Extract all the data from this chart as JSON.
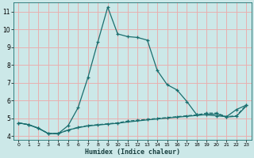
{
  "xlabel": "Humidex (Indice chaleur)",
  "bg_color": "#cce8e8",
  "grid_color": "#e8b0b0",
  "line_color": "#1a6e6e",
  "xlim": [
    -0.5,
    23.5
  ],
  "ylim": [
    3.8,
    11.5
  ],
  "xticks": [
    0,
    1,
    2,
    3,
    4,
    5,
    6,
    7,
    8,
    9,
    10,
    11,
    12,
    13,
    14,
    15,
    16,
    17,
    18,
    19,
    20,
    21,
    22,
    23
  ],
  "yticks": [
    4,
    5,
    6,
    7,
    8,
    9,
    10,
    11
  ],
  "line1_x": [
    0,
    1,
    2,
    3,
    4,
    5,
    6,
    7,
    8,
    9,
    10,
    11,
    12,
    13,
    14,
    15,
    16,
    17,
    18,
    19,
    20,
    21,
    22,
    23
  ],
  "line1_y": [
    4.75,
    4.65,
    4.45,
    4.15,
    4.15,
    4.6,
    5.6,
    7.3,
    9.3,
    11.25,
    9.75,
    9.6,
    9.55,
    9.4,
    7.7,
    6.9,
    6.6,
    5.95,
    5.2,
    5.2,
    5.15,
    5.1,
    5.5,
    5.75
  ],
  "line2_x": [
    0,
    1,
    2,
    3,
    4,
    5,
    6,
    7,
    8,
    9,
    10,
    11,
    12,
    13,
    14,
    15,
    16,
    17,
    18,
    19,
    20,
    21,
    22,
    23
  ],
  "line2_y": [
    4.75,
    4.65,
    4.45,
    4.15,
    4.15,
    4.35,
    4.5,
    4.6,
    4.65,
    4.7,
    4.75,
    4.85,
    4.9,
    4.95,
    5.0,
    5.05,
    5.1,
    5.15,
    5.2,
    5.3,
    5.3,
    5.1,
    5.15,
    5.75
  ],
  "line3_x": [
    0,
    1,
    2,
    3,
    4,
    5,
    6,
    7,
    8,
    9,
    10,
    11,
    12,
    13,
    14,
    15,
    16,
    17,
    18,
    19,
    20,
    21,
    22,
    23
  ],
  "line3_y": [
    4.75,
    4.65,
    4.45,
    4.15,
    4.15,
    4.35,
    4.48,
    4.58,
    4.63,
    4.68,
    4.73,
    4.8,
    4.86,
    4.92,
    4.97,
    5.02,
    5.07,
    5.12,
    5.17,
    5.22,
    5.25,
    5.08,
    5.12,
    5.7
  ]
}
